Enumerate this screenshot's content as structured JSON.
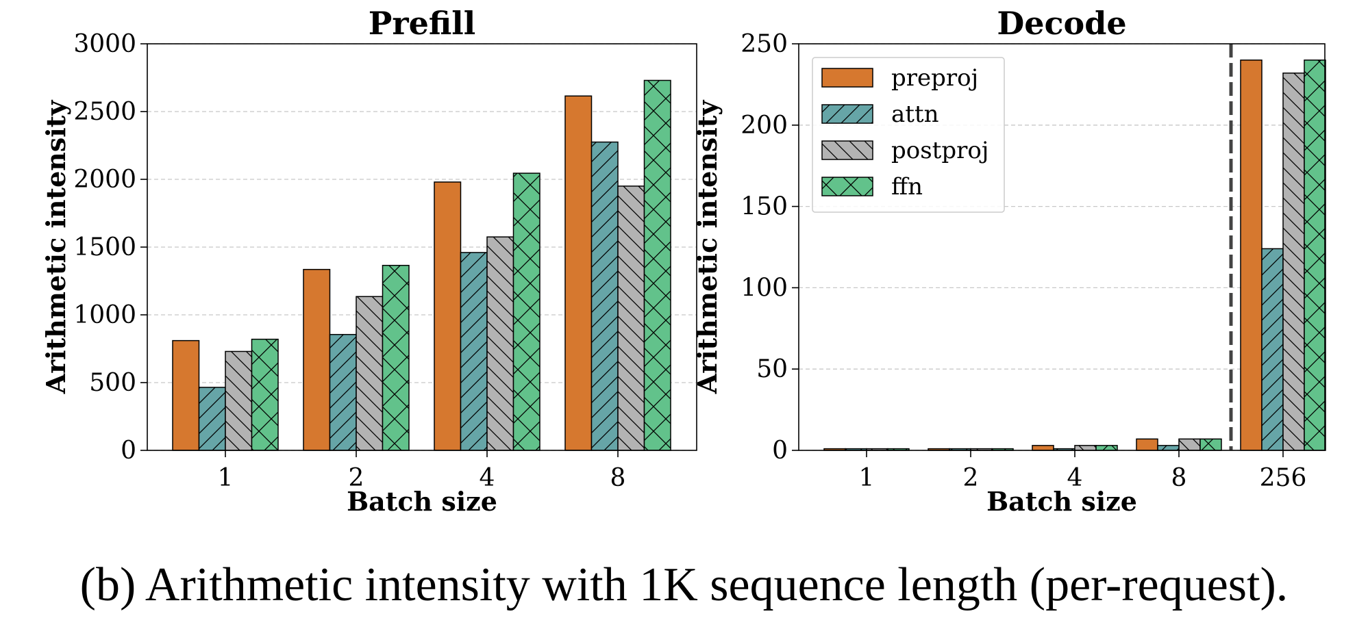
{
  "caption": "(b) Arithmetic intensity with 1K sequence length (per-request).",
  "colors": {
    "preproj": "#D6782F",
    "attn": "#66A5A7",
    "postproj": "#B3B3B3",
    "ffn": "#62C28B"
  },
  "chart_data": [
    {
      "type": "bar",
      "title": "Prefill",
      "xlabel": "Batch size",
      "ylabel": "Arithmetic intensity",
      "categories": [
        "1",
        "2",
        "4",
        "8"
      ],
      "ylim": [
        0,
        3000
      ],
      "yticks": [
        0,
        500,
        1000,
        1500,
        2000,
        2500,
        3000
      ],
      "grid": "y-dashed",
      "legend": "none",
      "series": [
        {
          "name": "preproj",
          "values": [
            810,
            1335,
            1980,
            2615
          ],
          "hatch": "none"
        },
        {
          "name": "attn",
          "values": [
            465,
            855,
            1460,
            2275
          ],
          "hatch": "forward-diagonal"
        },
        {
          "name": "postproj",
          "values": [
            730,
            1135,
            1575,
            1950
          ],
          "hatch": "back-diagonal"
        },
        {
          "name": "ffn",
          "values": [
            820,
            1365,
            2045,
            2730
          ],
          "hatch": "cross"
        }
      ]
    },
    {
      "type": "bar",
      "title": "Decode",
      "xlabel": "Batch size",
      "ylabel": "Arithmetic intensity",
      "categories": [
        "1",
        "2",
        "4",
        "8",
        "256"
      ],
      "ylim": [
        0,
        250
      ],
      "yticks": [
        0,
        50,
        100,
        150,
        200,
        250
      ],
      "grid": "y-dashed",
      "legend": "top-left",
      "separator_after_category": "8",
      "series": [
        {
          "name": "preproj",
          "values": [
            1,
            1,
            3,
            7,
            240
          ],
          "hatch": "none"
        },
        {
          "name": "attn",
          "values": [
            1,
            1,
            1,
            3,
            124
          ],
          "hatch": "forward-diagonal"
        },
        {
          "name": "postproj",
          "values": [
            1,
            1,
            3,
            7,
            232
          ],
          "hatch": "back-diagonal"
        },
        {
          "name": "ffn",
          "values": [
            1,
            1,
            3,
            7,
            240
          ],
          "hatch": "cross"
        }
      ]
    }
  ]
}
